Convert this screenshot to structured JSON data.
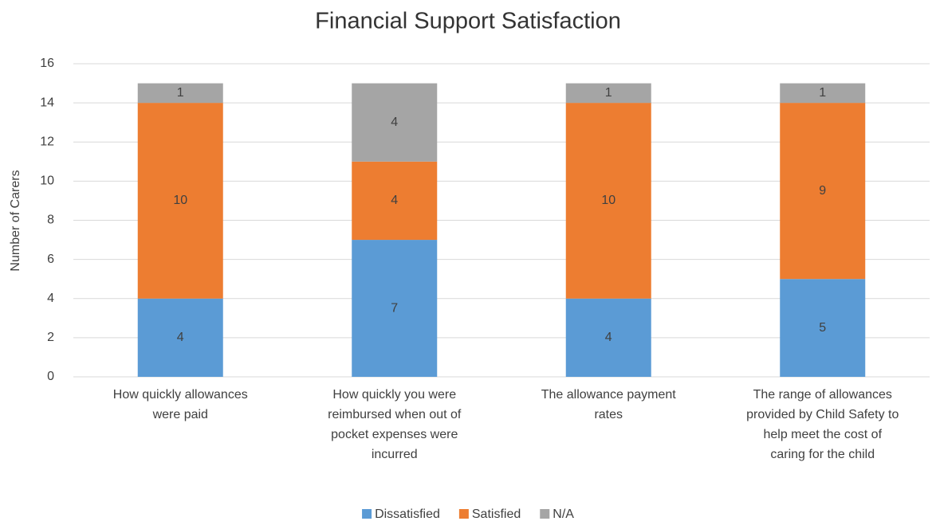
{
  "chart_data": {
    "type": "stacked_bar",
    "title": "Financial Support Satisfaction",
    "y_label": "Number of Carers",
    "categories": [
      "How quickly allowances\nwere paid",
      "How quickly you were\nreimbursed when out of\npocket expenses were\nincurred",
      "The allowance payment\nrates",
      "The range of allowances\nprovided by Child Safety to\nhelp meet the cost of\ncaring for the child"
    ],
    "series": [
      {
        "name": "Dissatisfied",
        "color": "#5b9bd5",
        "values": [
          4,
          7,
          4,
          5
        ]
      },
      {
        "name": "Satisfied",
        "color": "#ed7d31",
        "values": [
          10,
          4,
          10,
          9
        ]
      },
      {
        "name": "N/A",
        "color": "#a5a5a5",
        "values": [
          1,
          4,
          1,
          1
        ]
      }
    ],
    "ylim": [
      0,
      16
    ],
    "yticks": [
      0,
      2,
      4,
      6,
      8,
      10,
      12,
      14,
      16
    ],
    "grid": true,
    "legend": "bottom"
  }
}
